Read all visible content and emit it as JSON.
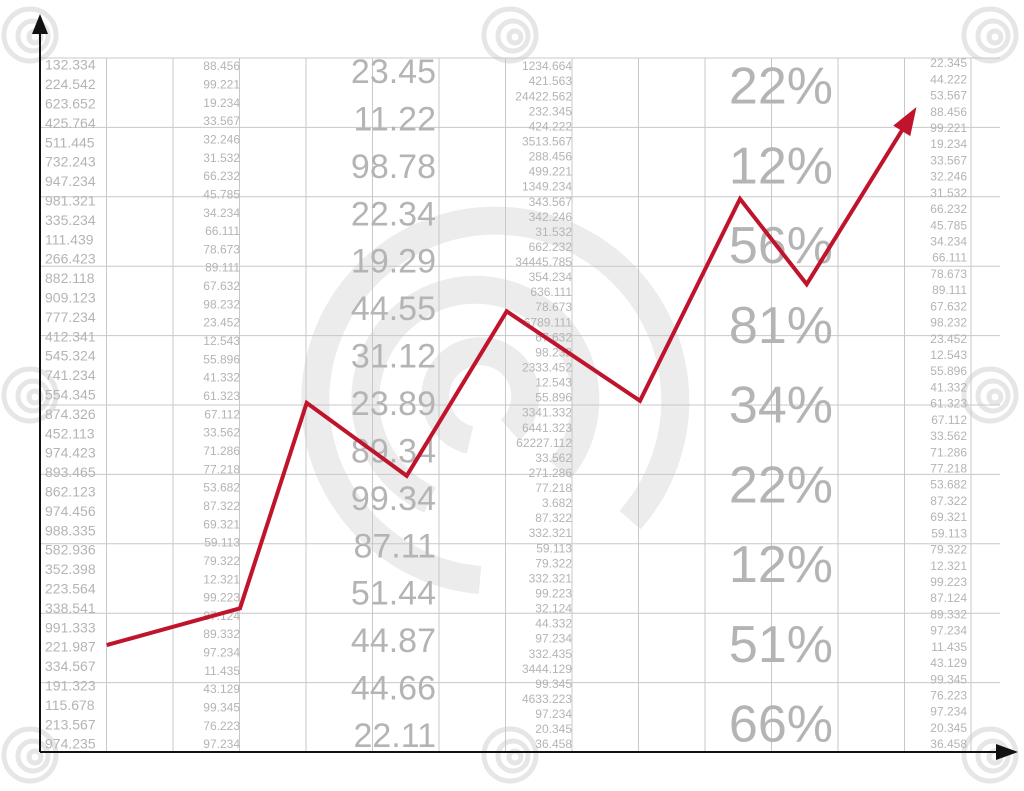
{
  "chart_data": {
    "type": "line",
    "x": [
      1,
      3,
      4,
      5.5,
      7,
      9,
      10.5,
      11.5,
      13.1
    ],
    "series": [
      {
        "color": "#c0142c",
        "values": [
          1.54,
          2.07,
          5.03,
          3.98,
          6.35,
          5.06,
          7.97,
          6.74,
          9.22
        ]
      }
    ],
    "xlim": [
      0,
      14.4
    ],
    "ylim": [
      0,
      10
    ]
  },
  "background_columns": [
    [
      "132.334",
      "224.542",
      "623.652",
      "425.764",
      "511.445",
      "732.243",
      "947.234",
      "981.321",
      "335.234",
      "111.439",
      "266.423",
      "882.118",
      "909.123",
      "777.234",
      "412.341",
      "545.324",
      "741.234",
      "554.345",
      "874.326",
      "452.113",
      "974.423",
      "893.465",
      "862.123",
      "974.456",
      "988.335",
      "582.936",
      "352.398",
      "223.564",
      "338.541",
      "991.333",
      "221.987",
      "334.567",
      "191.323",
      "115.678",
      "213.567",
      "974.235"
    ],
    [
      "88.456",
      "99.221",
      "19.234",
      "33.567",
      "32.246",
      "31.532",
      "66.232",
      "45.785",
      "34.234",
      "66.111",
      "78.673",
      "89.111",
      "67.632",
      "98.232",
      "23.452",
      "12.543",
      "55.896",
      "41.332",
      "61.323",
      "67.112",
      "33.562",
      "71.286",
      "77.218",
      "53.682",
      "87.322",
      "69.321",
      "59.113",
      "79.322",
      "12.321",
      "99.223",
      "87.124",
      "89.332",
      "97.234",
      "11.435",
      "43.129",
      "99.345",
      "76.223",
      "97.234"
    ],
    [
      "23.45",
      "11.22",
      "98.78",
      "22.34",
      "19.29",
      "44.55",
      "31.12",
      "23.89",
      "89.34",
      "99.34",
      "87.11",
      "51.44",
      "44.87",
      "44.66",
      "22.11"
    ],
    [
      "1234.664",
      "421.563",
      "24422.562",
      "232.345",
      "424.222",
      "3513.567",
      "288.456",
      "499.221",
      "1349.234",
      "343.567",
      "342.246",
      "31.532",
      "662.232",
      "34445.785",
      "354.234",
      "636.111",
      "78.673",
      "6789.111",
      "67.632",
      "98.232",
      "2333.452",
      "12.543",
      "55.896",
      "3341.332",
      "6441.323",
      "62227.112",
      "33.562",
      "271.286",
      "77.218",
      "3.682",
      "87.322",
      "332.321",
      "59.113",
      "79.322",
      "332.321",
      "99.223",
      "32.124",
      "44.332",
      "97.234",
      "332.435",
      "3444.129",
      "99.345",
      "4633.223",
      "97.234",
      "20.345",
      "36.458"
    ],
    [
      "22%",
      "12%",
      "56%",
      "81%",
      "34%",
      "22%",
      "12%",
      "51%",
      "66%"
    ],
    [
      "22.345",
      "44.222",
      "53.567",
      "88.456",
      "99.221",
      "19.234",
      "33.567",
      "32.246",
      "31.532",
      "66.232",
      "45.785",
      "34.234",
      "66.111",
      "78.673",
      "89.111",
      "67.632",
      "98.232",
      "23.452",
      "12.543",
      "55.896",
      "41.332",
      "61.323",
      "67.112",
      "33.562",
      "71.286",
      "77.218",
      "53.682",
      "87.322",
      "69.321",
      "59.113",
      "79.322",
      "12.321",
      "99.223",
      "87.124",
      "89.332",
      "97.234",
      "11.435",
      "43.129",
      "99.345",
      "76.223",
      "97.234",
      "20.345",
      "36.458"
    ]
  ]
}
